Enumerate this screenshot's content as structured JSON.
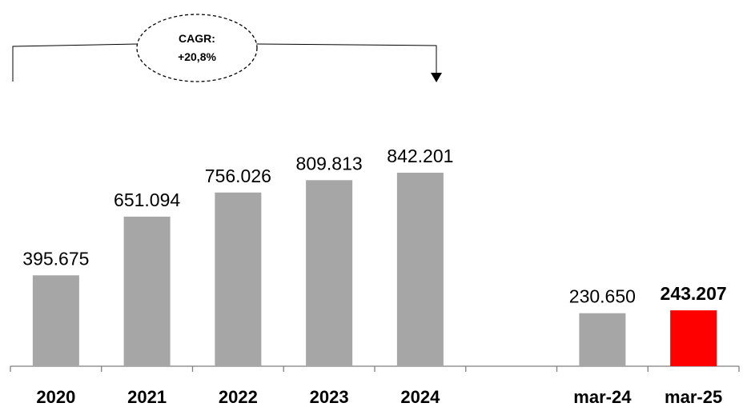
{
  "chart_data": {
    "type": "bar",
    "categories": [
      "2020",
      "2021",
      "2022",
      "2023",
      "2024",
      "",
      "mar-24",
      "mar-25"
    ],
    "values": [
      395675,
      651094,
      756026,
      809813,
      842201,
      null,
      230650,
      243207
    ],
    "value_labels": [
      "395.675",
      "651.094",
      "756.026",
      "809.813",
      "842.201",
      "",
      "230.650",
      "243.207"
    ],
    "bar_colors": [
      "#a6a6a6",
      "#a6a6a6",
      "#a6a6a6",
      "#a6a6a6",
      "#a6a6a6",
      "",
      "#a6a6a6",
      "#ff0000"
    ],
    "highlight_index": 7,
    "ylim": [
      0,
      1000000
    ],
    "grid": false,
    "annotation": {
      "line1": "CAGR:",
      "line2": "+20,8%",
      "from": "2020",
      "to": "2024"
    }
  }
}
